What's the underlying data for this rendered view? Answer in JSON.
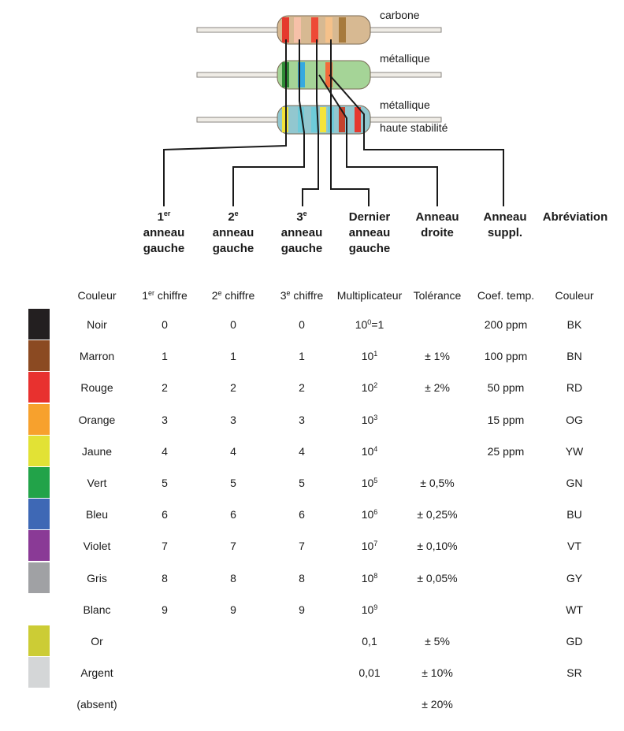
{
  "resistors": {
    "labels": {
      "carbone": "carbone",
      "metallique1": "métallique",
      "metallique2": "métallique",
      "haute": "haute stabilité"
    },
    "top": {
      "body_color": "#d7b992",
      "bands": [
        "#e5392e",
        "#f6c0a8",
        "#ee4a36",
        "#f5c18a",
        "#a77a3c"
      ]
    },
    "middle": {
      "body_color": "#a5d497",
      "bands": [
        "#2f8a35",
        "#36a9e0",
        "#a5d497",
        "#f36a3a",
        "#a5d497"
      ]
    },
    "bottom": {
      "body_color": "#92c7cf",
      "bands": [
        "#f3e43a",
        "#6ecbd9",
        "#6ecbd9",
        "#f3e43a",
        "#6ecbd9",
        "#c4432c",
        "#e5392e"
      ]
    }
  },
  "column_headings": {
    "first": {
      "main": "1",
      "sup": "er",
      "line2": "anneau",
      "line3": "gauche"
    },
    "second": {
      "main": "2",
      "sup": "e",
      "line2": "anneau",
      "line3": "gauche"
    },
    "third": {
      "main": "3",
      "sup": "e",
      "line2": "anneau",
      "line3": "gauche"
    },
    "last": {
      "line1": "Dernier",
      "line2": "anneau",
      "line3": "gauche"
    },
    "right": {
      "line1": "Anneau",
      "line2": "droite"
    },
    "suppl": {
      "line1": "Anneau",
      "line2": "suppl."
    },
    "abbr": {
      "line1": "Abréviation"
    }
  },
  "table": {
    "header": {
      "couleur": "Couleur",
      "d1_main": "1",
      "d1_sup": "er",
      "d1_rest": " chiffre",
      "d2_main": "2",
      "d2_sup": "e",
      "d2_rest": " chiffre",
      "d3_main": "3",
      "d3_sup": "e",
      "d3_rest": " chiffre",
      "mult": "Multiplicateur",
      "tol": "Tolérance",
      "coef": "Coef. temp.",
      "couleur2": "Couleur"
    },
    "rows": [
      {
        "swatch": "#231f20",
        "name": "Noir",
        "d1": "",
        "d2": "0",
        "d3": "0",
        "mult_base": "10",
        "mult_exp": "0",
        "mult_suffix": "=1",
        "tol": "",
        "coef": "200 ppm",
        "abbr": "BK"
      },
      {
        "swatch": "#8b4a22",
        "name": "Marron",
        "d1": "1",
        "d2": "1",
        "d3": "1",
        "mult_base": "10",
        "mult_exp": "1",
        "mult_suffix": "",
        "tol": "± 1%",
        "coef": "100 ppm",
        "abbr": "BN"
      },
      {
        "swatch": "#e8312f",
        "name": "Rouge",
        "d1": "2",
        "d2": "2",
        "d3": "2",
        "mult_base": "10",
        "mult_exp": "2",
        "mult_suffix": "",
        "tol": "± 2%",
        "coef": "50 ppm",
        "abbr": "RD"
      },
      {
        "swatch": "#f7a12d",
        "name": "Orange",
        "d1": "3",
        "d2": "3",
        "d3": "3",
        "mult_base": "10",
        "mult_exp": "3",
        "mult_suffix": "",
        "tol": "",
        "coef": "15 ppm",
        "abbr": "OG"
      },
      {
        "swatch": "#e2e235",
        "name": "Jaune",
        "d1": "4",
        "d2": "4",
        "d3": "4",
        "mult_base": "10",
        "mult_exp": "4",
        "mult_suffix": "",
        "tol": "",
        "coef": "25 ppm",
        "abbr": "YW"
      },
      {
        "swatch": "#22a349",
        "name": "Vert",
        "d1": "5",
        "d2": "5",
        "d3": "5",
        "mult_base": "10",
        "mult_exp": "5",
        "mult_suffix": "",
        "tol": "± 0,5%",
        "coef": "",
        "abbr": "GN"
      },
      {
        "swatch": "#3e68b5",
        "name": "Bleu",
        "d1": "6",
        "d2": "6",
        "d3": "6",
        "mult_base": "10",
        "mult_exp": "6",
        "mult_suffix": "",
        "tol": "± 0,25%",
        "coef": "",
        "abbr": "BU"
      },
      {
        "swatch": "#8a3a96",
        "name": "Violet",
        "d1": "7",
        "d2": "7",
        "d3": "7",
        "mult_base": "10",
        "mult_exp": "7",
        "mult_suffix": "",
        "tol": "± 0,10%",
        "coef": "",
        "abbr": "VT"
      },
      {
        "swatch": "#a0a1a4",
        "name": "Gris",
        "d1": "8",
        "d2": "8",
        "d3": "8",
        "mult_base": "10",
        "mult_exp": "8",
        "mult_suffix": "",
        "tol": "± 0,05%",
        "coef": "",
        "abbr": "GY"
      },
      {
        "swatch": "#ffffff",
        "name": "Blanc",
        "d1": "9",
        "d2": "9",
        "d3": "9",
        "mult_base": "10",
        "mult_exp": "9",
        "mult_suffix": "",
        "tol": "",
        "coef": "",
        "abbr": "WT"
      },
      {
        "swatch": "#cccc35",
        "name": "Or",
        "d1": "",
        "d2": "",
        "d3": "",
        "mult_base": "0,1",
        "mult_exp": "",
        "mult_suffix": "",
        "tol": "± 5%",
        "coef": "",
        "abbr": "GD"
      },
      {
        "swatch": "#d4d6d7",
        "name": "Argent",
        "d1": "",
        "d2": "",
        "d3": "",
        "mult_base": "0,01",
        "mult_exp": "",
        "mult_suffix": "",
        "tol": "± 10%",
        "coef": "",
        "abbr": "SR"
      },
      {
        "swatch": "#ffffff",
        "name": "(absent)",
        "d1": "",
        "d2": "",
        "d3": "",
        "mult_base": "",
        "mult_exp": "",
        "mult_suffix": "",
        "tol": "± 20%",
        "coef": "",
        "abbr": ""
      }
    ]
  }
}
